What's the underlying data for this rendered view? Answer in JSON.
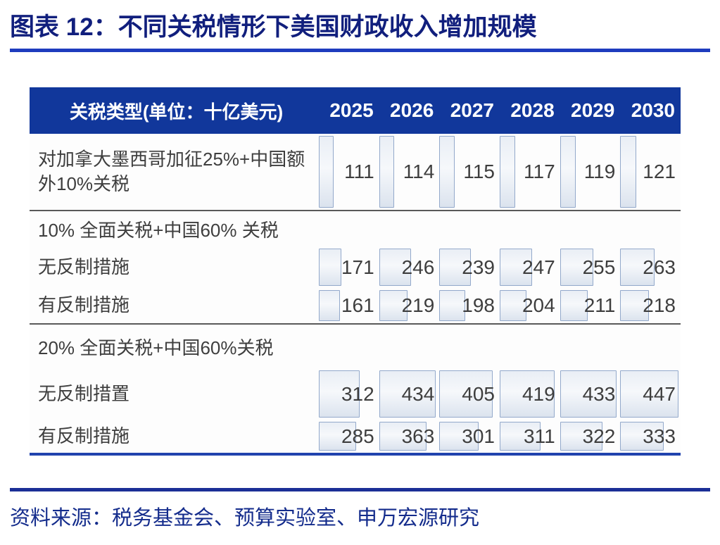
{
  "title": "图表 12：不同关税情形下美国财政收入增加规模",
  "source": "资料来源：税务基金会、预算实验室、申万宏源研究",
  "colors": {
    "header_bg": "#11379B",
    "header_text": "#FFFFFF",
    "title_text": "#111F7D",
    "title_rule": "#1E3CBE",
    "source_rule": "#1B2F96",
    "source_text": "#142C8C",
    "body_text": "#3E3E3E",
    "section_divider": "#595959",
    "table_bottom_rule": "#2143AE",
    "bar_border": "#93A9CB",
    "bar_fill": "#E9EEF5"
  },
  "chart_data": {
    "type": "table",
    "title": "不同关税情形下美国财政收入增加规模",
    "unit": "十亿美元",
    "header_label": "关税类型(单位：十亿美元)",
    "columns": [
      "2025",
      "2026",
      "2027",
      "2028",
      "2029",
      "2030"
    ],
    "bar_max": 447,
    "bar_style": "in-cell data bars proportional to value",
    "rows": [
      {
        "type": "data",
        "label": "对加拿大墨西哥加征25%+中国额外10%关税",
        "values": [
          111,
          114,
          115,
          117,
          119,
          121
        ]
      },
      {
        "type": "section",
        "label": "10% 全面关税+中国60% 关税"
      },
      {
        "type": "data",
        "label": "无反制措施",
        "values": [
          171,
          246,
          239,
          247,
          255,
          263
        ]
      },
      {
        "type": "data",
        "label": "有反制措施",
        "values": [
          161,
          219,
          198,
          204,
          211,
          218
        ]
      },
      {
        "type": "section",
        "label": "20% 全面关税+中国60%关税"
      },
      {
        "type": "data",
        "label": "无反制措置",
        "values": [
          312,
          434,
          405,
          419,
          433,
          447
        ]
      },
      {
        "type": "data",
        "label": "有反制措施",
        "values": [
          285,
          363,
          301,
          311,
          322,
          333
        ]
      }
    ]
  }
}
